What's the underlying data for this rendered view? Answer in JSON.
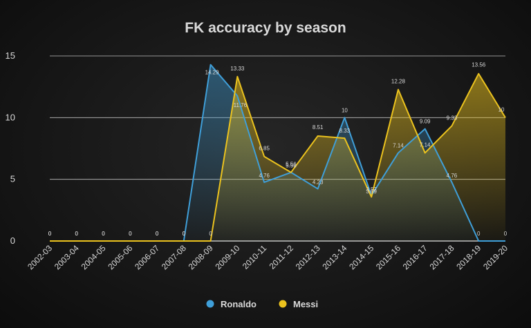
{
  "chart_data": {
    "type": "area",
    "title": "FK accuracy by season",
    "categories": [
      "2002-03",
      "2003-04",
      "2004-05",
      "2005-06",
      "2006-07",
      "2007-08",
      "2008-09",
      "2009-10",
      "2010-11",
      "2011-12",
      "2012-13",
      "2013-14",
      "2014-15",
      "2015-16",
      "2016-17",
      "2017-18",
      "2018-19",
      "2019-20"
    ],
    "series": [
      {
        "name": "Ronaldo",
        "color": "#3f9fd9",
        "values": [
          0,
          0,
          0,
          0,
          0,
          0,
          14.29,
          11.76,
          4.76,
          5.56,
          4.23,
          10,
          3.69,
          7.14,
          9.09,
          4.76,
          0,
          0
        ],
        "labels": [
          "0",
          "0",
          "0",
          "0",
          "0",
          "0",
          "14.29",
          "11.76",
          "4.76",
          "5.56",
          "4.23",
          "10",
          "3.69",
          "7.14",
          "9.09",
          "4.76",
          "0",
          "0"
        ]
      },
      {
        "name": "Messi",
        "color": "#ecc31e",
        "values": [
          0,
          0,
          0,
          0,
          0,
          0,
          0,
          13.33,
          6.85,
          5.56,
          8.51,
          8.33,
          3.57,
          12.28,
          7.14,
          9.33,
          13.56,
          10
        ],
        "labels": [
          "0",
          "0",
          "0",
          "0",
          "0",
          "0",
          "0",
          "13.33",
          "6.85",
          "5.56",
          "8.51",
          "8.33",
          "3.57",
          "12.28",
          "7.14",
          "9.33",
          "13.56",
          "10"
        ]
      }
    ],
    "ylim": [
      0,
      15
    ],
    "yticks": [
      0,
      5,
      10,
      15
    ],
    "grid": true,
    "legend": "bottom",
    "xlabel": "",
    "ylabel": ""
  }
}
